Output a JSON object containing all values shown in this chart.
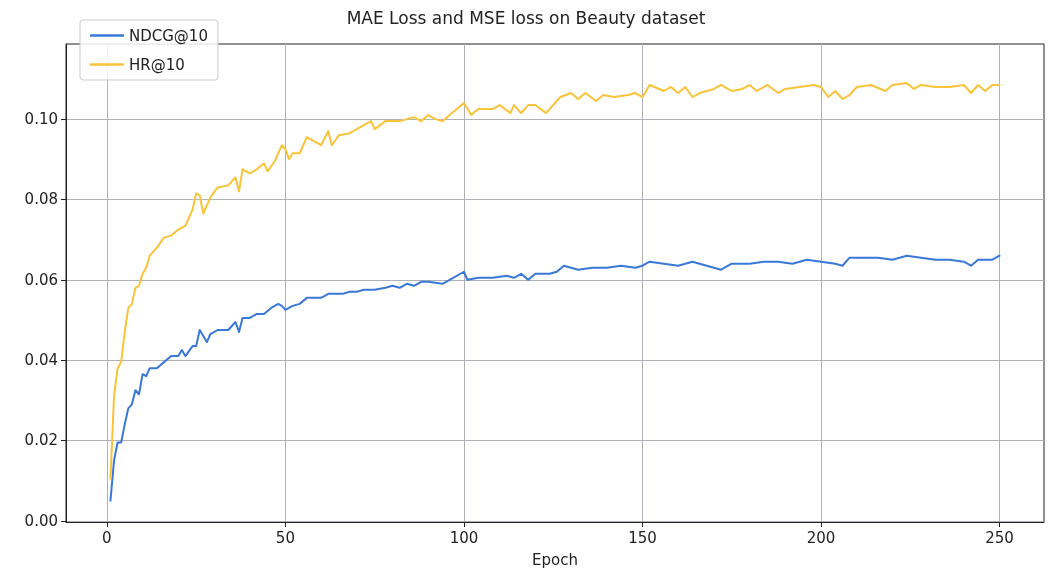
{
  "chart_data": {
    "type": "line",
    "title": "MAE Loss and MSE loss on Beauty dataset",
    "xlabel": "Epoch",
    "xlim": [
      -11.45,
      262.45
    ],
    "xticks": [
      0,
      50,
      100,
      150,
      200,
      250
    ],
    "ylim": [
      -0.0003,
      0.1187
    ],
    "yticks": [
      {
        "value": 0,
        "label": "0.00"
      },
      {
        "value": 0.02,
        "label": "0.02"
      },
      {
        "value": 0.04,
        "label": "0.04"
      },
      {
        "value": 0.06,
        "label": "0.06"
      },
      {
        "value": 0.08,
        "label": "0.08"
      },
      {
        "value": 0.1,
        "label": "0.10"
      }
    ],
    "grid": true,
    "legend": "top left",
    "marker": "none",
    "line_style": "solid",
    "series": [
      {
        "name": "NDCG@10",
        "color": "#3a78d8",
        "x": [
          1,
          2,
          3,
          4,
          5,
          6,
          7,
          8,
          9,
          10,
          11,
          12,
          14,
          16,
          18,
          20,
          21,
          22,
          24,
          25,
          26,
          27,
          28,
          29,
          31,
          34,
          36,
          37,
          38,
          40,
          42,
          44,
          46,
          48,
          49,
          50,
          52,
          54,
          56,
          58,
          60,
          62,
          64,
          66,
          68,
          70,
          72,
          75,
          78,
          80,
          82,
          84,
          86,
          88,
          90,
          94,
          96,
          100,
          101,
          104,
          108,
          112,
          114,
          116,
          118,
          120,
          124,
          126,
          128,
          132,
          136,
          140,
          144,
          148,
          150,
          152,
          156,
          160,
          164,
          168,
          172,
          175,
          180,
          184,
          188,
          192,
          196,
          200,
          204,
          206,
          208,
          212,
          216,
          220,
          224,
          228,
          232,
          236,
          240,
          242,
          244,
          248,
          250
        ],
        "values": [
          0.005,
          0.015,
          0.0195,
          0.0195,
          0.024,
          0.028,
          0.029,
          0.0325,
          0.0315,
          0.0365,
          0.036,
          0.038,
          0.038,
          0.0395,
          0.041,
          0.041,
          0.0425,
          0.041,
          0.0435,
          0.0435,
          0.0475,
          0.046,
          0.0445,
          0.0465,
          0.0475,
          0.0475,
          0.0495,
          0.047,
          0.0505,
          0.0505,
          0.0515,
          0.0515,
          0.053,
          0.054,
          0.0535,
          0.0525,
          0.0535,
          0.054,
          0.0555,
          0.0555,
          0.0555,
          0.0565,
          0.0565,
          0.0565,
          0.057,
          0.057,
          0.0575,
          0.0575,
          0.058,
          0.0585,
          0.058,
          0.059,
          0.0585,
          0.0595,
          0.0595,
          0.059,
          0.06,
          0.062,
          0.06,
          0.0605,
          0.0605,
          0.061,
          0.0605,
          0.0615,
          0.06,
          0.0615,
          0.0615,
          0.062,
          0.0635,
          0.0625,
          0.063,
          0.063,
          0.0635,
          0.063,
          0.0635,
          0.0645,
          0.064,
          0.0635,
          0.0645,
          0.0635,
          0.0625,
          0.064,
          0.064,
          0.0645,
          0.0645,
          0.064,
          0.065,
          0.0645,
          0.064,
          0.0635,
          0.0655,
          0.0655,
          0.0655,
          0.065,
          0.066,
          0.0655,
          0.065,
          0.065,
          0.0645,
          0.0635,
          0.065,
          0.065,
          0.066
        ]
      },
      {
        "name": "HR@10",
        "color": "#f9c33a",
        "x": [
          1,
          2,
          3,
          4,
          5,
          6,
          7,
          8,
          9,
          10,
          11,
          12,
          14,
          16,
          18,
          20,
          22,
          24,
          25,
          26,
          27,
          29,
          31,
          34,
          36,
          37,
          38,
          40,
          42,
          44,
          45,
          47,
          49,
          50,
          51,
          52,
          54,
          56,
          58,
          60,
          62,
          63,
          65,
          68,
          72,
          74,
          75,
          78,
          82,
          86,
          88,
          90,
          92,
          94,
          96,
          100,
          102,
          104,
          108,
          110,
          113,
          114,
          116,
          118,
          120,
          123,
          127,
          130,
          132,
          134,
          137,
          139,
          142,
          146,
          148,
          150,
          152,
          156,
          158,
          160,
          162,
          164,
          166,
          170,
          172,
          175,
          178,
          180,
          182,
          185,
          188,
          190,
          194,
          198,
          200,
          202,
          204,
          206,
          208,
          210,
          214,
          218,
          220,
          224,
          226,
          228,
          232,
          236,
          240,
          242,
          244,
          246,
          248,
          250
        ],
        "values": [
          0.0105,
          0.031,
          0.038,
          0.0395,
          0.047,
          0.053,
          0.054,
          0.058,
          0.0585,
          0.0615,
          0.063,
          0.066,
          0.068,
          0.0705,
          0.071,
          0.0725,
          0.0735,
          0.0775,
          0.0815,
          0.081,
          0.0765,
          0.0805,
          0.083,
          0.0835,
          0.0855,
          0.082,
          0.0875,
          0.0865,
          0.0875,
          0.089,
          0.087,
          0.0895,
          0.0935,
          0.0925,
          0.09,
          0.0915,
          0.0915,
          0.0955,
          0.0945,
          0.0935,
          0.097,
          0.0935,
          0.096,
          0.0965,
          0.0985,
          0.0995,
          0.0975,
          0.0995,
          0.0995,
          0.1005,
          0.0995,
          0.101,
          0.1,
          0.0995,
          0.101,
          0.104,
          0.101,
          0.1025,
          0.1025,
          0.1035,
          0.1015,
          0.1035,
          0.1015,
          0.1035,
          0.1035,
          0.1015,
          0.1055,
          0.1065,
          0.105,
          0.1065,
          0.1045,
          0.106,
          0.1055,
          0.106,
          0.1065,
          0.1055,
          0.1085,
          0.107,
          0.108,
          0.1065,
          0.108,
          0.1055,
          0.1065,
          0.1075,
          0.1085,
          0.107,
          0.1075,
          0.1085,
          0.107,
          0.1085,
          0.1065,
          0.1075,
          0.108,
          0.1085,
          0.108,
          0.1055,
          0.107,
          0.105,
          0.106,
          0.108,
          0.1085,
          0.107,
          0.1085,
          0.109,
          0.1075,
          0.1085,
          0.108,
          0.108,
          0.1085,
          0.1065,
          0.1085,
          0.107,
          0.1085,
          0.1085
        ]
      }
    ]
  }
}
